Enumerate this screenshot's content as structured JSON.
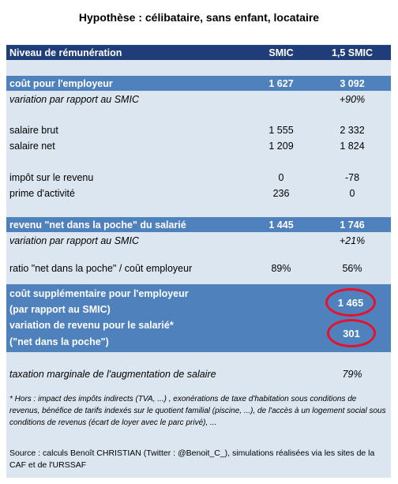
{
  "title": "Hypothèse : célibataire, sans enfant, locataire",
  "header": {
    "label": "Niveau de rémunération",
    "col1": "SMIC",
    "col2": "1,5 SMIC"
  },
  "rows": {
    "cout_employeur": {
      "label": "coût pour l'employeur",
      "v1": "1 627",
      "v2": "3 092"
    },
    "variation_smic_1": {
      "label": "variation par rapport au SMIC",
      "v1": "",
      "v2": "+90%"
    },
    "salaire_brut": {
      "label": "salaire brut",
      "v1": "1 555",
      "v2": "2 332"
    },
    "salaire_net": {
      "label": "salaire net",
      "v1": "1 209",
      "v2": "1 824"
    },
    "impot": {
      "label": "impôt sur le revenu",
      "v1": "0",
      "v2": "-78"
    },
    "prime": {
      "label": "prime d'activité",
      "v1": "236",
      "v2": "0"
    },
    "revenu_poche": {
      "label": "revenu \"net dans la poche\" du salarié",
      "v1": "1 445",
      "v2": "1 746"
    },
    "variation_smic_2": {
      "label": "variation par rapport au SMIC",
      "v1": "",
      "v2": "+21%"
    },
    "ratio": {
      "label": "ratio \"net dans la poche\"  / coût employeur",
      "v1": "89%",
      "v2": "56%"
    },
    "taxation": {
      "label": "taxation marginale de l'augmentation de salaire",
      "v1": "",
      "v2": "79%"
    }
  },
  "highlight": {
    "line1": "coût supplémentaire pour l'employeur",
    "line2": "(par rapport au SMIC)",
    "line3": "variation de revenu pour le salarié*",
    "line4": "(\"net dans la poche\")",
    "value1": "1 465",
    "value2": "301",
    "circle_color": "#e8112d"
  },
  "footnote": "* Hors : impact des impôts indirects (TVA, ...) , exonérations de taxe d'habitation sous conditions de revenus, bénéfice de tarifs indexés sur le quotient familial (piscine, ...), de l'accès à un logement social sous conditions de revenus (écart de loyer avec le parc privé), ...",
  "source": "Source : calculs Benoît CHRISTIAN (Twitter : @Benoit_C_), simulations réalisées via les sites de la CAF et de l'URSSAF",
  "colors": {
    "header_bg": "#1f3d78",
    "row_blue": "#4f81bd",
    "panel_bg": "#dce6f1"
  }
}
